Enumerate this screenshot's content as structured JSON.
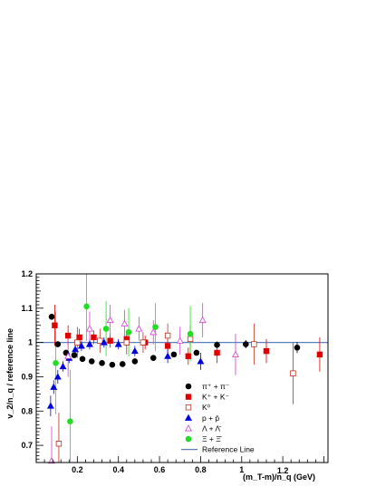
{
  "chart_data": {
    "type": "scatter",
    "xlabel": "(m_T-m)/n_q (GeV)",
    "ylabel": "v_2/n_q / reference line",
    "xlim": [
      0,
      1.42
    ],
    "ylim": [
      0.65,
      1.2
    ],
    "x_ticks": [
      "0.2",
      "0.4",
      "0.6",
      "0.8",
      "1",
      "1.2"
    ],
    "y_ticks": [
      "0.7",
      "0.8",
      "0.9",
      "1",
      "1.1",
      "1.2"
    ],
    "reference_line": {
      "name": "Reference Line",
      "y": 1.0,
      "color": "#5b7fbf"
    },
    "legend_position": "bottom-right",
    "series": [
      {
        "name": "π⁺ + π⁻",
        "marker": "circle",
        "filled": true,
        "color": "#000000",
        "points": [
          {
            "x": 0.075,
            "y": 1.075,
            "err": 0.008
          },
          {
            "x": 0.105,
            "y": 0.995,
            "err": 0.008
          },
          {
            "x": 0.145,
            "y": 0.97,
            "err": 0.006
          },
          {
            "x": 0.185,
            "y": 0.963,
            "err": 0.006
          },
          {
            "x": 0.225,
            "y": 0.952,
            "err": 0.006
          },
          {
            "x": 0.27,
            "y": 0.945,
            "err": 0.006
          },
          {
            "x": 0.32,
            "y": 0.94,
            "err": 0.006
          },
          {
            "x": 0.37,
            "y": 0.935,
            "err": 0.006
          },
          {
            "x": 0.42,
            "y": 0.937,
            "err": 0.006
          },
          {
            "x": 0.48,
            "y": 0.945,
            "err": 0.006
          },
          {
            "x": 0.57,
            "y": 0.955,
            "err": 0.006
          },
          {
            "x": 0.67,
            "y": 0.965,
            "err": 0.007
          },
          {
            "x": 0.78,
            "y": 0.97,
            "err": 0.008
          },
          {
            "x": 0.88,
            "y": 0.993,
            "err": 0.01
          },
          {
            "x": 1.02,
            "y": 0.995,
            "err": 0.012
          },
          {
            "x": 1.27,
            "y": 0.985,
            "err": 0.016
          }
        ]
      },
      {
        "name": "K⁺ + K⁻",
        "marker": "square",
        "filled": true,
        "color": "#e00000",
        "points": [
          {
            "x": 0.09,
            "y": 1.05,
            "err": 0.06
          },
          {
            "x": 0.155,
            "y": 1.02,
            "err": 0.03
          },
          {
            "x": 0.21,
            "y": 1.015,
            "err": 0.025
          },
          {
            "x": 0.28,
            "y": 1.015,
            "err": 0.02
          },
          {
            "x": 0.36,
            "y": 1.005,
            "err": 0.02
          },
          {
            "x": 0.44,
            "y": 1.01,
            "err": 0.02
          },
          {
            "x": 0.53,
            "y": 1.0,
            "err": 0.02
          },
          {
            "x": 0.64,
            "y": 0.99,
            "err": 0.02
          },
          {
            "x": 0.74,
            "y": 0.96,
            "err": 0.025
          },
          {
            "x": 0.88,
            "y": 0.97,
            "err": 0.03
          },
          {
            "x": 1.12,
            "y": 0.975,
            "err": 0.035
          },
          {
            "x": 1.38,
            "y": 0.965,
            "err": 0.05
          }
        ]
      },
      {
        "name": "K⁰",
        "marker": "square",
        "filled": false,
        "color": "#c03020",
        "points": [
          {
            "x": 0.11,
            "y": 0.705,
            "err": 0.09
          },
          {
            "x": 0.2,
            "y": 1.0,
            "err": 0.045
          },
          {
            "x": 0.31,
            "y": 1.005,
            "err": 0.035
          },
          {
            "x": 0.44,
            "y": 1.0,
            "err": 0.035
          },
          {
            "x": 0.52,
            "y": 1.0,
            "err": 0.03
          },
          {
            "x": 0.64,
            "y": 1.02,
            "err": 0.035
          },
          {
            "x": 0.75,
            "y": 1.01,
            "err": 0.04
          },
          {
            "x": 1.06,
            "y": 0.995,
            "err": 0.06
          },
          {
            "x": 1.25,
            "y": 0.91,
            "err": 0.09
          }
        ]
      },
      {
        "name": "p + p̄",
        "marker": "triangle",
        "filled": true,
        "color": "#0000dd",
        "points": [
          {
            "x": 0.07,
            "y": 0.815,
            "err": 0.03
          },
          {
            "x": 0.085,
            "y": 0.87,
            "err": 0.02
          },
          {
            "x": 0.105,
            "y": 0.9,
            "err": 0.02
          },
          {
            "x": 0.13,
            "y": 0.93,
            "err": 0.015
          },
          {
            "x": 0.16,
            "y": 0.955,
            "err": 0.015
          },
          {
            "x": 0.19,
            "y": 0.98,
            "err": 0.015
          },
          {
            "x": 0.22,
            "y": 0.99,
            "err": 0.015
          },
          {
            "x": 0.26,
            "y": 0.995,
            "err": 0.015
          },
          {
            "x": 0.33,
            "y": 1.0,
            "err": 0.015
          },
          {
            "x": 0.4,
            "y": 0.995,
            "err": 0.015
          },
          {
            "x": 0.48,
            "y": 0.975,
            "err": 0.015
          },
          {
            "x": 0.64,
            "y": 0.96,
            "err": 0.02
          },
          {
            "x": 0.8,
            "y": 0.945,
            "err": 0.025
          }
        ]
      },
      {
        "name": "Λ + Λ̄",
        "marker": "triangle",
        "filled": false,
        "color": "#d040d0",
        "points": [
          {
            "x": 0.075,
            "y": 0.655,
            "err": 0.1
          },
          {
            "x": 0.155,
            "y": 0.96,
            "err": 0.06
          },
          {
            "x": 0.26,
            "y": 1.04,
            "err": 0.05
          },
          {
            "x": 0.36,
            "y": 1.065,
            "err": 0.045
          },
          {
            "x": 0.43,
            "y": 1.055,
            "err": 0.04
          },
          {
            "x": 0.5,
            "y": 1.04,
            "err": 0.035
          },
          {
            "x": 0.57,
            "y": 1.03,
            "err": 0.035
          },
          {
            "x": 0.7,
            "y": 1.005,
            "err": 0.04
          },
          {
            "x": 0.81,
            "y": 1.065,
            "err": 0.05
          },
          {
            "x": 0.97,
            "y": 0.965,
            "err": 0.06
          }
        ]
      },
      {
        "name": "Ξ + Ξ̄",
        "marker": "circle",
        "filled": true,
        "color": "#22dd22",
        "points": [
          {
            "x": 0.095,
            "y": 0.94,
            "err": 0.15
          },
          {
            "x": 0.165,
            "y": 0.77,
            "err": 0.15
          },
          {
            "x": 0.245,
            "y": 1.105,
            "err": 0.1
          },
          {
            "x": 0.34,
            "y": 1.04,
            "err": 0.08
          },
          {
            "x": 0.45,
            "y": 1.03,
            "err": 0.07
          },
          {
            "x": 0.58,
            "y": 1.045,
            "err": 0.07
          },
          {
            "x": 0.75,
            "y": 1.025,
            "err": 0.08
          }
        ]
      }
    ]
  }
}
